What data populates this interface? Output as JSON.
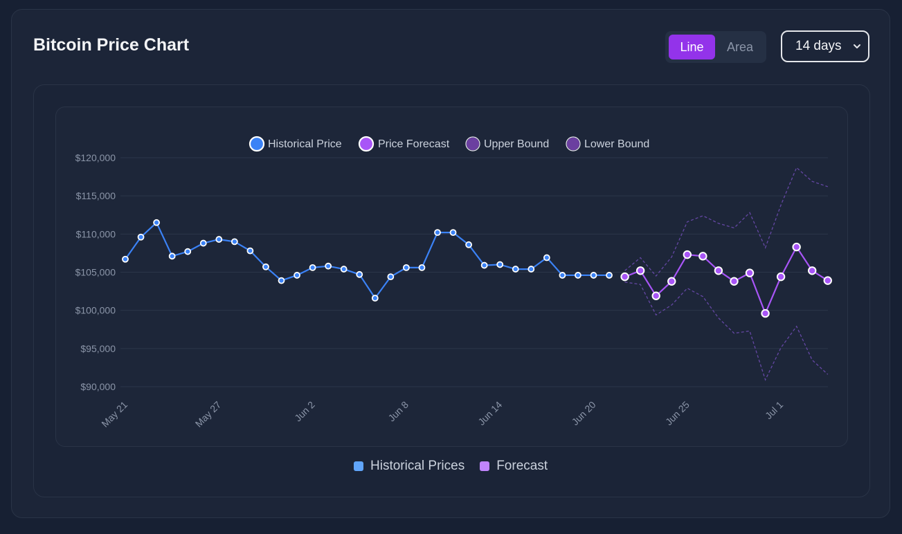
{
  "header": {
    "title": "Bitcoin Price Chart",
    "toggle": {
      "line_label": "Line",
      "area_label": "Area",
      "active": "Line"
    },
    "range_select": {
      "value": "14 days"
    }
  },
  "chart_data": {
    "type": "line",
    "title": "",
    "xlabel": "",
    "ylabel": "",
    "ylim": [
      90000,
      120000
    ],
    "yticks": [
      "$120,000",
      "$115,000",
      "$110,000",
      "$105,000",
      "$100,000",
      "$95,000",
      "$90,000"
    ],
    "ytick_values": [
      120000,
      115000,
      110000,
      105000,
      100000,
      95000,
      90000
    ],
    "xticks": [
      {
        "label": "May 21",
        "index": 0
      },
      {
        "label": "May 27",
        "index": 6
      },
      {
        "label": "Jun 2",
        "index": 12
      },
      {
        "label": "Jun 8",
        "index": 18
      },
      {
        "label": "Jun 14",
        "index": 24
      },
      {
        "label": "Jun 20",
        "index": 30
      },
      {
        "label": "Jun 25",
        "index": 36
      },
      {
        "label": "Jul 1",
        "index": 42
      }
    ],
    "grid": true,
    "legend_top": [
      {
        "name": "Historical Price",
        "color": "#3b82f6"
      },
      {
        "name": "Price Forecast",
        "color": "#a855f7"
      },
      {
        "name": "Upper Bound",
        "color": "#6b3fa0"
      },
      {
        "name": "Lower Bound",
        "color": "#6b3fa0"
      }
    ],
    "legend_bottom": [
      {
        "name": "Historical Prices",
        "color": "#60a5fa"
      },
      {
        "name": "Forecast",
        "color": "#c084fc"
      }
    ],
    "series": [
      {
        "name": "Historical Price",
        "color": "#3b82f6",
        "start_index": 0,
        "values": [
          106700,
          109600,
          111500,
          107100,
          107700,
          108800,
          109300,
          109000,
          107800,
          105700,
          103900,
          104600,
          105600,
          105800,
          105400,
          104700,
          101600,
          104400,
          105600,
          105600,
          110200,
          110200,
          108600,
          105900,
          106000,
          105400,
          105400,
          106900,
          104600,
          104600,
          104600,
          104600
        ]
      },
      {
        "name": "Price Forecast",
        "color": "#a855f7",
        "start_index": 32,
        "values": [
          104400,
          105200,
          101900,
          103800,
          107300,
          107100,
          105200,
          103800,
          104900,
          99600,
          104400,
          108300,
          105200,
          103900
        ]
      },
      {
        "name": "Upper Bound",
        "color": "#6b3fa0",
        "dashed": true,
        "start_index": 32,
        "values": [
          105200,
          106900,
          104500,
          107000,
          111600,
          112400,
          111400,
          110800,
          112800,
          108200,
          113800,
          118700,
          116900,
          116200
        ]
      },
      {
        "name": "Lower Bound",
        "color": "#6b3fa0",
        "dashed": true,
        "start_index": 32,
        "values": [
          103700,
          103400,
          99400,
          100700,
          102900,
          101800,
          99000,
          97000,
          97300,
          90900,
          95100,
          97900,
          93500,
          91600
        ]
      }
    ]
  }
}
